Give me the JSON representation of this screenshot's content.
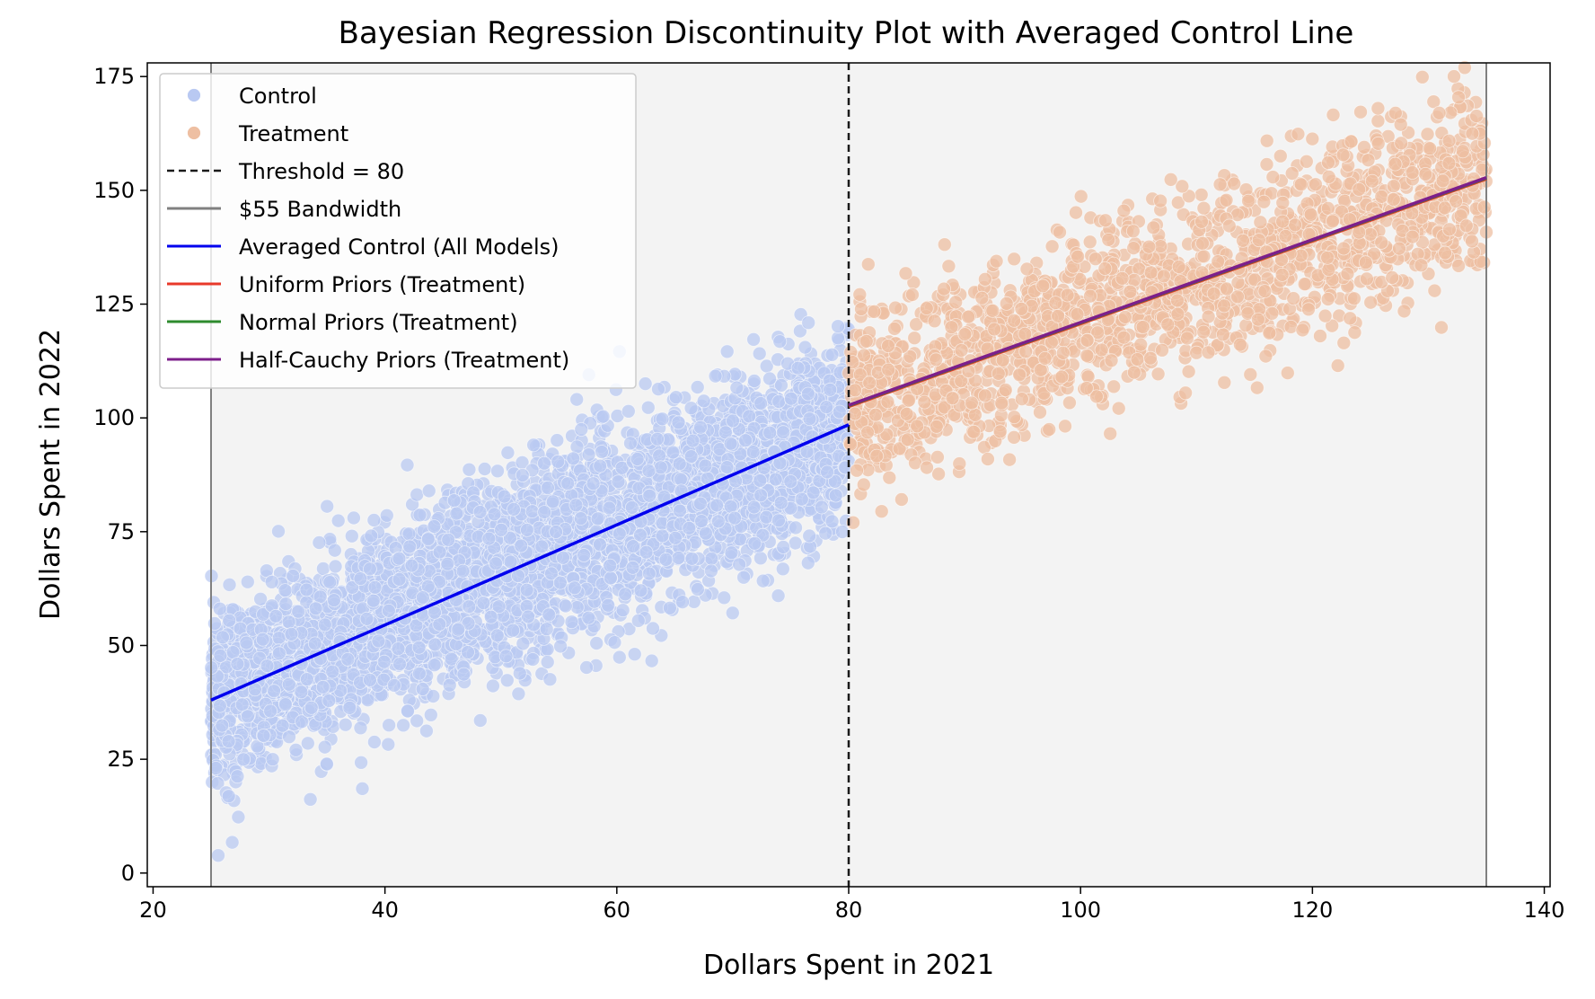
{
  "chart_data": {
    "type": "scatter",
    "title": "Bayesian Regression Discontinuity Plot with Averaged Control Line",
    "xlabel": "Dollars Spent in 2021",
    "ylabel": "Dollars Spent in 2022",
    "xlim": [
      19.5,
      140.5
    ],
    "ylim": [
      -3,
      178
    ],
    "xticks": [
      20,
      40,
      60,
      80,
      100,
      120,
      140
    ],
    "yticks": [
      0,
      25,
      50,
      75,
      100,
      125,
      150,
      175
    ],
    "grid": false,
    "legend_position": "upper left",
    "background_color": "#f3f3f3",
    "threshold": {
      "value": 80,
      "label": "Threshold = 80",
      "style": "dashed",
      "color": "#1a1a1a"
    },
    "bandwidth": {
      "label": "$55 Bandwidth",
      "lower": 25,
      "upper": 135,
      "color": "#808080"
    },
    "shaded_region": [
      25,
      135
    ],
    "scatter_series": [
      {
        "name": "Control",
        "color": "#b9c9f2",
        "x_range": [
          25,
          80
        ],
        "fit": {
          "intercept": 10.5,
          "slope": 1.1
        },
        "noise_sd": 10,
        "point_count": 4500
      },
      {
        "name": "Treatment",
        "color": "#eebfa2",
        "x_range": [
          80,
          135
        ],
        "fit": {
          "intercept": 102.5,
          "slope": 0.90909,
          "x0": 80
        },
        "noise_sd": 10,
        "point_count": 1800
      }
    ],
    "lines": [
      {
        "name": "Averaged Control (All Models)",
        "color": "#0000ee",
        "x": [
          25,
          80
        ],
        "y": [
          38,
          98.5
        ]
      },
      {
        "name": "Uniform Priors (Treatment)",
        "color": "#e8392a",
        "x": [
          80,
          135
        ],
        "y": [
          102.5,
          152.5
        ]
      },
      {
        "name": "Normal Priors (Treatment)",
        "color": "#2e8b2e",
        "x": [
          80,
          135
        ],
        "y": [
          102.7,
          152.7
        ]
      },
      {
        "name": "Half-Cauchy Priors (Treatment)",
        "color": "#7d1f8b",
        "x": [
          80,
          135
        ],
        "y": [
          102.8,
          152.8
        ]
      }
    ],
    "legend": [
      {
        "label": "Control",
        "kind": "marker",
        "color": "#b9c9f2"
      },
      {
        "label": "Treatment",
        "kind": "marker",
        "color": "#eebfa2"
      },
      {
        "label": "Threshold = 80",
        "kind": "dashed",
        "color": "#1a1a1a"
      },
      {
        "label": "$55 Bandwidth",
        "kind": "line",
        "color": "#808080"
      },
      {
        "label": "Averaged Control (All Models)",
        "kind": "line",
        "color": "#0000ee"
      },
      {
        "label": "Uniform Priors (Treatment)",
        "kind": "line",
        "color": "#e8392a"
      },
      {
        "label": "Normal Priors (Treatment)",
        "kind": "line",
        "color": "#2e8b2e"
      },
      {
        "label": "Half-Cauchy Priors (Treatment)",
        "kind": "line",
        "color": "#7d1f8b"
      }
    ]
  }
}
